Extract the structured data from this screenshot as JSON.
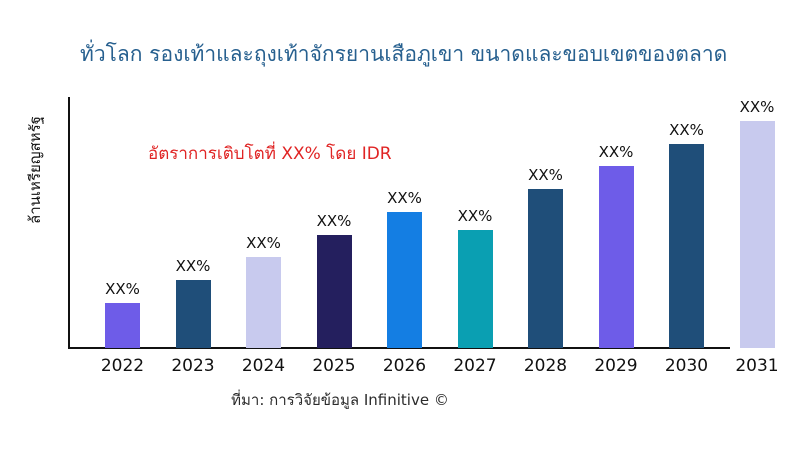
{
  "title": "ทั่วโลก รองเท้าและถุงเท้าจักรยานเสือภูเขา ขนาดและขอบเขตของตลาด",
  "annotation": "อัตราการเติบโตที่ XX% โดย IDR",
  "y_axis_label": "ล้านเหรียญสหรัฐ",
  "source": "ที่มา: การวิจัยข้อมูล Infinitive ©",
  "colors": {
    "title": "#27608f",
    "annotation": "#e02424",
    "axis": "#111111",
    "label_text": "#111111",
    "background": "#ffffff"
  },
  "chart_data": {
    "type": "bar",
    "title": "ทั่วโลก รองเท้าและถุงเท้าจักรยานเสือภูเขา ขนาดและขอบเขตของตลาด",
    "xlabel": "",
    "ylabel": "ล้านเหรียญสหรัฐ",
    "categories": [
      "2022",
      "2023",
      "2024",
      "2025",
      "2026",
      "2027",
      "2028",
      "2029",
      "2030",
      "2031"
    ],
    "values": [
      20,
      30,
      40,
      50,
      60,
      52,
      70,
      80,
      90,
      100
    ],
    "values_note": "actual values masked in chart; heights are relative % of tallest bar (2031)",
    "bar_labels": [
      "XX%",
      "XX%",
      "XX%",
      "XX%",
      "XX%",
      "XX%",
      "XX%",
      "XX%",
      "XX%",
      "XX%"
    ],
    "bar_colors": [
      "#6e5ce8",
      "#1f4e79",
      "#c8caee",
      "#241f5e",
      "#147ee3",
      "#0a9fb2",
      "#1f4e79",
      "#6e5ce8",
      "#1f4e79",
      "#c8caee"
    ],
    "annotation": "อัตราการเติบโตที่ XX% โดย IDR",
    "ylim": [
      0,
      110
    ],
    "grid": false,
    "legend": false,
    "tick_labels_visible": false,
    "axis_note": "x-axis line ends before the 2031 bar; no y-axis tick values shown"
  }
}
